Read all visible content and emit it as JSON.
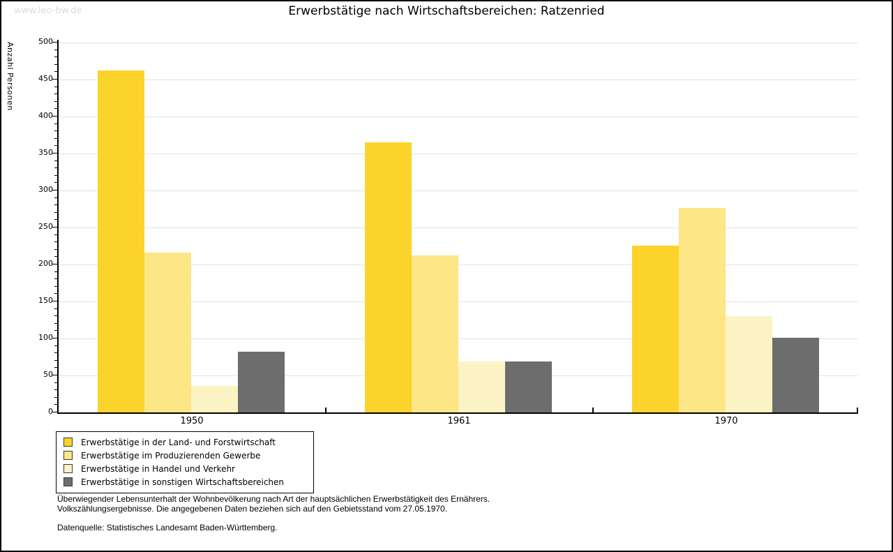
{
  "watermark": "www.leo-bw.de",
  "title": "Erwerbstätige nach Wirtschaftsbereichen: Ratzenried",
  "chart_data": {
    "type": "bar",
    "title": "Erwerbstätige nach Wirtschaftsbereichen: Ratzenried",
    "xlabel": "",
    "ylabel": "Anzahl Personen",
    "categories": [
      "1950",
      "1961",
      "1970"
    ],
    "series": [
      {
        "name": "Erwerbstätige in der Land- und Forstwirtschaft",
        "color": "#FBD32B",
        "values": [
          462,
          365,
          225
        ]
      },
      {
        "name": "Erwerbstätige im Produzierenden Gewerbe",
        "color": "#FCE685",
        "values": [
          216,
          212,
          276
        ]
      },
      {
        "name": "Erwerbstätige in Handel und Verkehr",
        "color": "#FCF3C5",
        "values": [
          36,
          69,
          130
        ]
      },
      {
        "name": "Erwerbstätige in sonstigen Wirtschaftsbereichen",
        "color": "#6D6D6D",
        "values": [
          82,
          69,
          101
        ]
      }
    ],
    "ylim": [
      0,
      500
    ],
    "ytick_step": 50,
    "ytick_minor_step": 10,
    "grid": true,
    "gridline_color": "#e3e3e3",
    "legend_position": "bottom-left"
  },
  "footnotes": {
    "line1": "Überwiegender Lebensunterhalt der Wohnbevölkerung nach Art der hauptsächlichen Erwerbstätigkeit des Ernährers.",
    "line2": "Volkszählungsergebnisse. Die angegebenen Daten beziehen sich auf den Gebietsstand vom 27.05.1970.",
    "source": "Datenquelle: Statistisches Landesamt Baden-Württemberg."
  }
}
